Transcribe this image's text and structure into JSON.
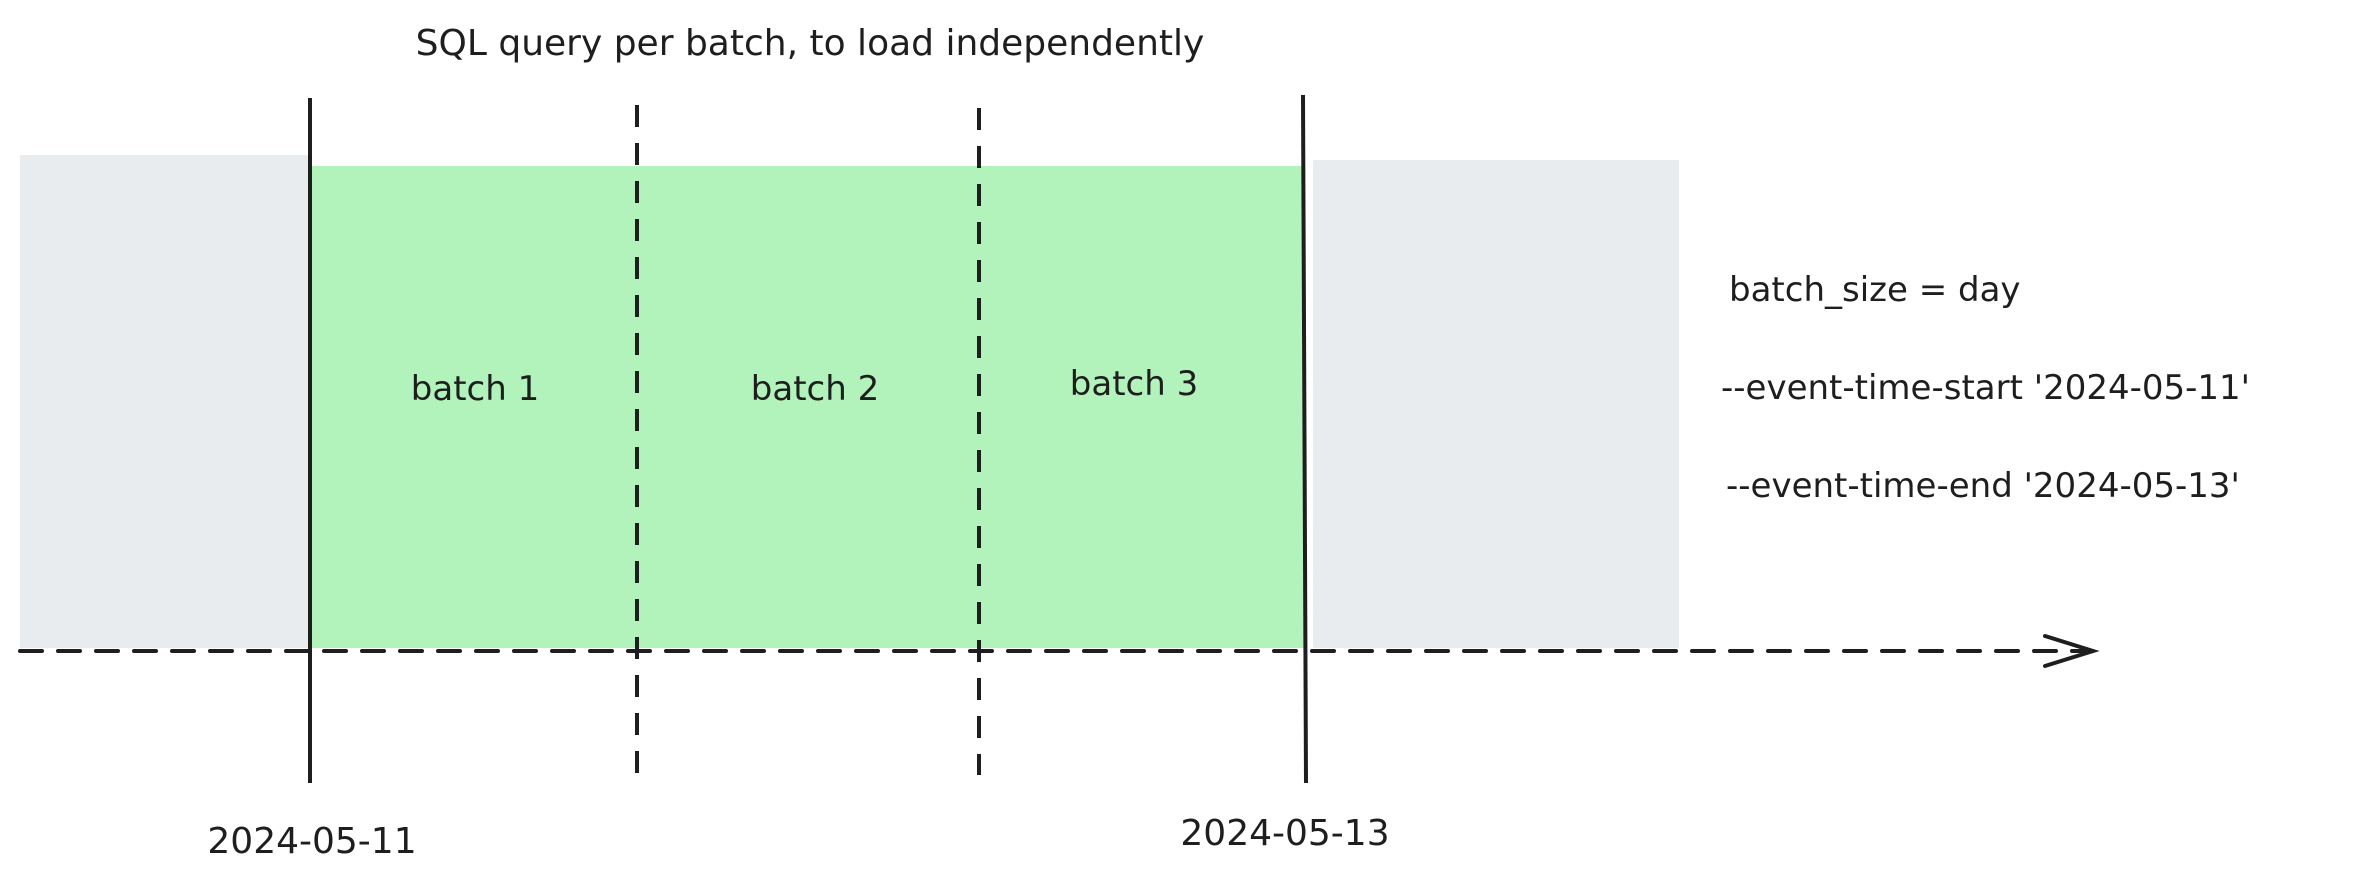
{
  "title": "SQL query per batch, to load independently",
  "batches": [
    {
      "label": "batch 1"
    },
    {
      "label": "batch 2"
    },
    {
      "label": "batch 3"
    }
  ],
  "dates": {
    "start": "2024-05-11",
    "end": "2024-05-13"
  },
  "config": {
    "batch_size": "batch_size = day",
    "event_time_start": "--event-time-start '2024-05-11'",
    "event_time_end": "--event-time-end '2024-05-13'"
  },
  "colors": {
    "selected_range": "#b2f2bb",
    "outside_range": "#e9ecef",
    "stroke": "#1e1e1e"
  }
}
